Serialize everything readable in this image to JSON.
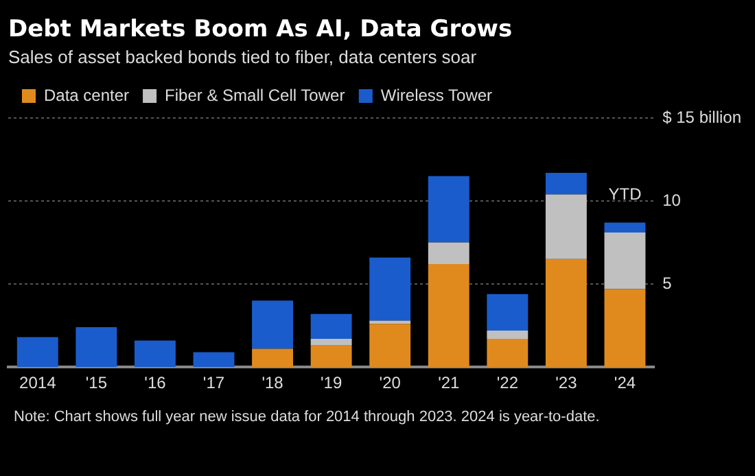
{
  "chart_data": {
    "type": "bar",
    "title": "Debt Markets Boom As AI, Data Grows",
    "subtitle": "Sales of asset backed bonds tied to fiber, data centers soar",
    "categories": [
      "2014",
      "'15",
      "'16",
      "'17",
      "'18",
      "'19",
      "'20",
      "'21",
      "'22",
      "'23",
      "'24"
    ],
    "series": [
      {
        "name": "Data center",
        "color": "#e08a1e",
        "values": [
          0,
          0,
          0,
          0,
          1.1,
          1.3,
          2.6,
          6.2,
          1.7,
          6.5,
          4.7
        ]
      },
      {
        "name": "Fiber & Small Cell Tower",
        "color": "#c0c0c0",
        "values": [
          0,
          0,
          0,
          0,
          0,
          0.4,
          0.2,
          1.3,
          0.5,
          3.9,
          3.4
        ]
      },
      {
        "name": "Wireless Tower",
        "color": "#1a5ccc",
        "values": [
          1.8,
          2.4,
          1.6,
          0.9,
          2.9,
          1.5,
          3.8,
          4.0,
          2.2,
          1.3,
          0.6
        ]
      }
    ],
    "stacked": true,
    "ylim": [
      0,
      15
    ],
    "yticks": [
      5,
      10,
      {
        "value": 15,
        "label": "$ 15 billion"
      }
    ],
    "grid": "y",
    "legend": "top left",
    "annotations": [
      {
        "text": "YTD",
        "x": "'24",
        "y": 8.7
      },
      "Note: Chart shows full year new issue data for 2014 through 2023. 2024 is year-to-date."
    ]
  }
}
